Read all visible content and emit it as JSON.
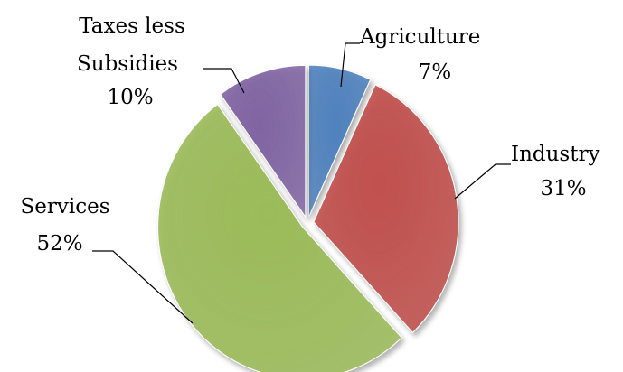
{
  "chart_data": {
    "type": "pie",
    "title": "",
    "slices": [
      {
        "label": "Agriculture",
        "value": 7,
        "value_label": "7%",
        "color": "#4f81bd"
      },
      {
        "label": "Industry",
        "value": 31,
        "value_label": "31%",
        "color": "#c0504d"
      },
      {
        "label": "Services",
        "value": 52,
        "value_label": "52%",
        "color": "#9bbb59"
      },
      {
        "label": "Taxes less Subsidies",
        "value": 10,
        "value_label": "10%",
        "color": "#8064a2"
      }
    ],
    "start_angle_deg": 0,
    "direction": "clockwise",
    "exploded": true,
    "style": "3d-shaded",
    "legend": "none",
    "labels": "outside-with-leader-lines"
  }
}
